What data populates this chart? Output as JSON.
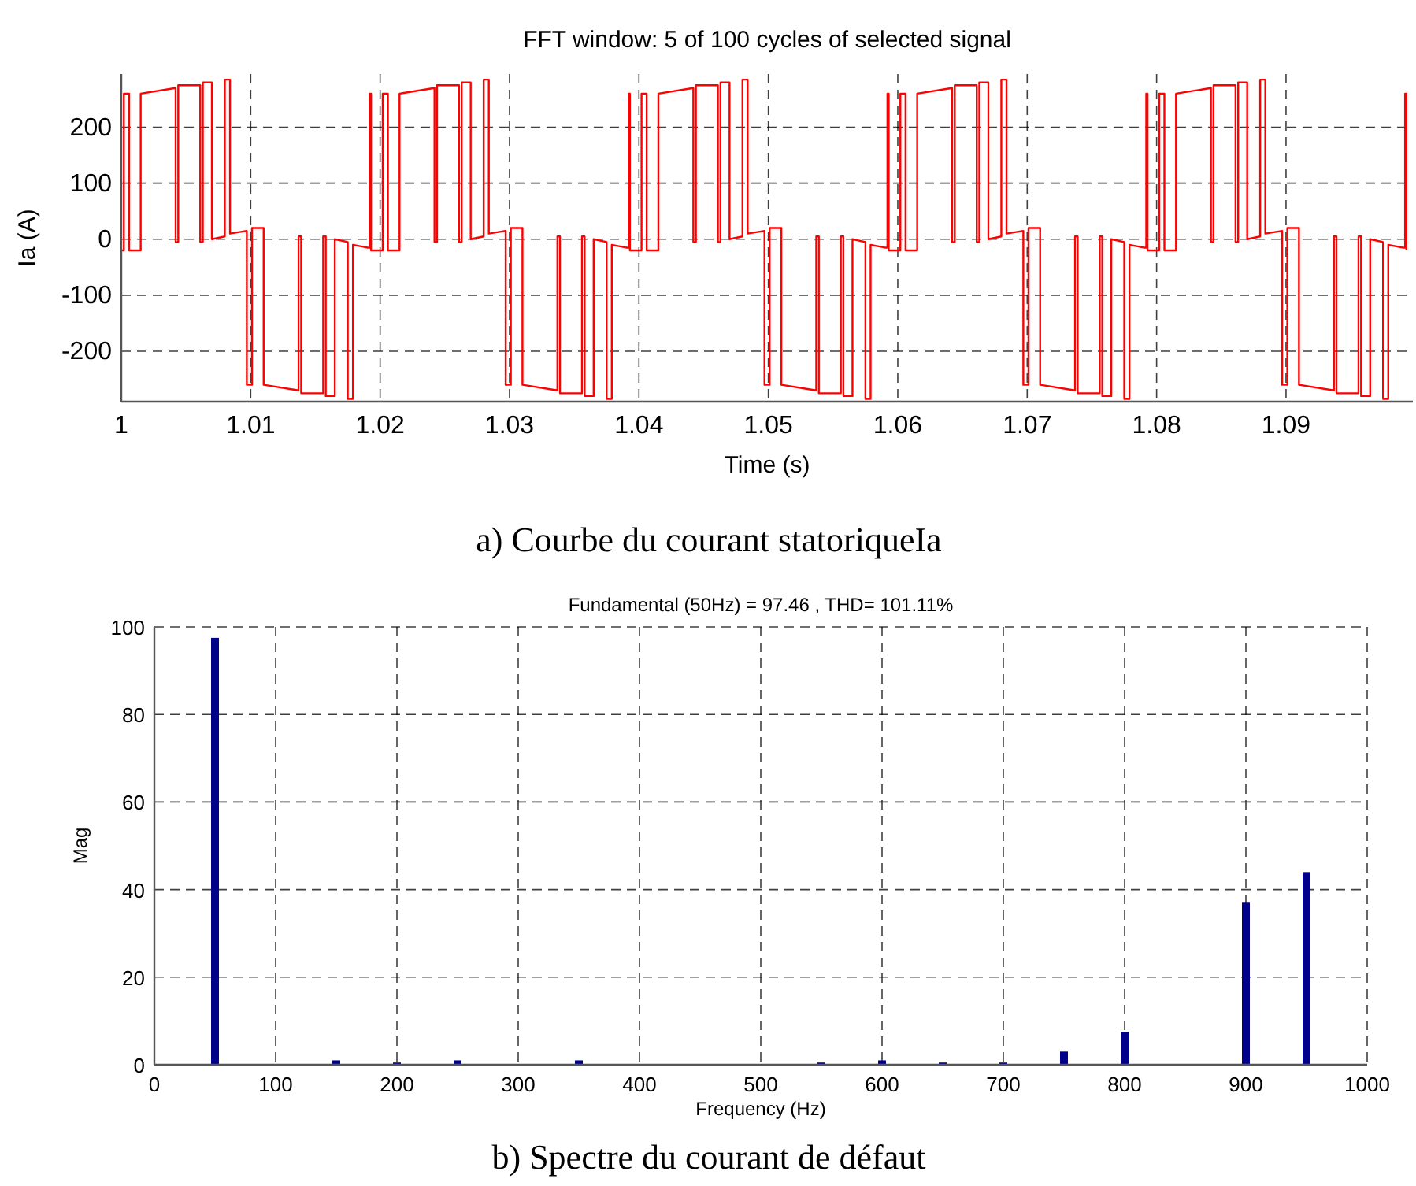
{
  "chart_data": [
    {
      "type": "line",
      "title": "FFT window: 5 of 100 cycles of selected signal",
      "xlabel": "Time (s)",
      "ylabel": "Ia  (A)",
      "annotations": [
        "a) Courbe du courant statoriqueIa"
      ],
      "color": "#ff0000",
      "grid": true,
      "xlim": [
        1,
        1.0998
      ],
      "ylim": [
        -290,
        295
      ],
      "xticks": [
        1,
        1.01,
        1.02,
        1.03,
        1.04,
        1.05,
        1.06,
        1.07,
        1.08,
        1.09
      ],
      "yticks": [
        -200,
        -100,
        0,
        100,
        200
      ],
      "x": [
        1.0,
        1.0002,
        1.0002,
        1.0006,
        1.0006,
        1.0015,
        1.0015,
        1.0042,
        1.0042,
        1.0044,
        1.0044,
        1.0061,
        1.0061,
        1.0063,
        1.0063,
        1.007,
        1.007,
        1.008,
        1.008,
        1.0084,
        1.0084,
        1.0097,
        1.0097,
        1.0101,
        1.0101,
        1.011,
        1.011,
        1.0137,
        1.0137,
        1.0139,
        1.0139,
        1.0156,
        1.0156,
        1.0158,
        1.0158,
        1.0165,
        1.0165,
        1.0175,
        1.0175,
        1.0179,
        1.0179,
        1.019,
        1.0192,
        1.0192,
        1.0193,
        1.0193,
        1.02,
        1.0202,
        1.0202,
        1.0206,
        1.0206,
        1.0215,
        1.0215,
        1.0242,
        1.0242,
        1.0244,
        1.0244,
        1.0261,
        1.0261,
        1.0263,
        1.0263,
        1.027,
        1.027,
        1.028,
        1.028,
        1.0284,
        1.0284,
        1.0297,
        1.0297,
        1.0301,
        1.0301,
        1.031,
        1.031,
        1.0337,
        1.0337,
        1.0339,
        1.0339,
        1.0356,
        1.0356,
        1.0358,
        1.0358,
        1.0365,
        1.0365,
        1.0375,
        1.0375,
        1.0379,
        1.0379,
        1.039,
        1.0392,
        1.0392,
        1.0393,
        1.0393,
        1.04,
        1.0402,
        1.0402,
        1.0406,
        1.0406,
        1.0415,
        1.0415,
        1.0442,
        1.0442,
        1.0444,
        1.0444,
        1.0461,
        1.0461,
        1.0463,
        1.0463,
        1.047,
        1.047,
        1.048,
        1.048,
        1.0484,
        1.0484,
        1.0497,
        1.0497,
        1.0501,
        1.0501,
        1.051,
        1.051,
        1.0537,
        1.0537,
        1.0539,
        1.0539,
        1.0556,
        1.0556,
        1.0558,
        1.0558,
        1.0565,
        1.0565,
        1.0575,
        1.0575,
        1.0579,
        1.0579,
        1.059,
        1.0592,
        1.0592,
        1.0593,
        1.0593,
        1.06,
        1.0602,
        1.0602,
        1.0606,
        1.0606,
        1.0615,
        1.0615,
        1.0642,
        1.0642,
        1.0644,
        1.0644,
        1.0661,
        1.0661,
        1.0663,
        1.0663,
        1.067,
        1.067,
        1.068,
        1.068,
        1.0684,
        1.0684,
        1.0697,
        1.0697,
        1.0701,
        1.0701,
        1.071,
        1.071,
        1.0737,
        1.0737,
        1.0739,
        1.0739,
        1.0756,
        1.0756,
        1.0758,
        1.0758,
        1.0765,
        1.0765,
        1.0775,
        1.0775,
        1.0779,
        1.0779,
        1.079,
        1.0792,
        1.0792,
        1.0793,
        1.0793,
        1.08,
        1.0802,
        1.0802,
        1.0806,
        1.0806,
        1.0815,
        1.0815,
        1.0842,
        1.0842,
        1.0844,
        1.0844,
        1.0861,
        1.0861,
        1.0863,
        1.0863,
        1.087,
        1.087,
        1.088,
        1.088,
        1.0884,
        1.0884,
        1.0897,
        1.0897,
        1.0901,
        1.0901,
        1.091,
        1.091,
        1.0937,
        1.0937,
        1.0939,
        1.0939,
        1.0956,
        1.0956,
        1.0958,
        1.0958,
        1.0965,
        1.0965,
        1.0975,
        1.0975,
        1.0979,
        1.0979,
        1.099,
        1.0992,
        1.0992,
        1.0993,
        1.0993
      ],
      "values": [
        -20,
        -20,
        260,
        260,
        -20,
        -20,
        260,
        270,
        -5,
        -5,
        275,
        275,
        -5,
        -5,
        280,
        280,
        0,
        5,
        285,
        285,
        10,
        15,
        -260,
        -260,
        20,
        20,
        -260,
        -270,
        5,
        5,
        -275,
        -275,
        5,
        5,
        -280,
        -280,
        0,
        -5,
        -285,
        -285,
        -10,
        -15,
        -15,
        260,
        260,
        -20,
        -20,
        -20,
        260,
        260,
        -20,
        -20,
        260,
        270,
        -5,
        -5,
        275,
        275,
        -5,
        -5,
        280,
        280,
        0,
        5,
        285,
        285,
        10,
        15,
        -260,
        -260,
        20,
        20,
        -260,
        -270,
        5,
        5,
        -275,
        -275,
        5,
        5,
        -280,
        -280,
        0,
        -5,
        -285,
        -285,
        -10,
        -15,
        -15,
        260,
        260,
        -20,
        -20,
        -20,
        260,
        260,
        -20,
        -20,
        260,
        270,
        -5,
        -5,
        275,
        275,
        -5,
        -5,
        280,
        280,
        0,
        5,
        285,
        285,
        10,
        15,
        -260,
        -260,
        20,
        20,
        -260,
        -270,
        5,
        5,
        -275,
        -275,
        5,
        5,
        -280,
        -280,
        0,
        -5,
        -285,
        -285,
        -10,
        -15,
        -15,
        260,
        260,
        -20,
        -20,
        -20,
        260,
        260,
        -20,
        -20,
        260,
        270,
        -5,
        -5,
        275,
        275,
        -5,
        -5,
        280,
        280,
        0,
        5,
        285,
        285,
        10,
        15,
        -260,
        -260,
        20,
        20,
        -260,
        -270,
        5,
        5,
        -275,
        -275,
        5,
        5,
        -280,
        -280,
        0,
        -5,
        -285,
        -285,
        -10,
        -15,
        -15,
        260,
        260,
        -20,
        -20,
        -20,
        260,
        260,
        -20,
        -20,
        260,
        270,
        -5,
        -5,
        275,
        275,
        -5,
        -5,
        280,
        280,
        0,
        5,
        285,
        285,
        10,
        15,
        -260,
        -260,
        20,
        20,
        -260,
        -270,
        5,
        5,
        -275,
        -275,
        5,
        5,
        -280,
        -280,
        0,
        -5,
        -285,
        -285,
        -10,
        -15,
        -15,
        260,
        260,
        -20
      ]
    },
    {
      "type": "bar",
      "title": "Fundamental (50Hz) = 97.46 , THD= 101.11%",
      "xlabel": "Frequency (Hz)",
      "ylabel": "Mag",
      "annotations": [
        "b) Spectre du courant de défaut"
      ],
      "color": "#00008b",
      "grid": true,
      "xlim": [
        0,
        1000
      ],
      "ylim": [
        0,
        100
      ],
      "xticks": [
        0,
        100,
        200,
        300,
        400,
        500,
        600,
        700,
        800,
        900,
        1000
      ],
      "yticks": [
        0,
        20,
        40,
        60,
        80,
        100
      ],
      "x": [
        50,
        150,
        200,
        250,
        350,
        550,
        600,
        650,
        700,
        750,
        800,
        900,
        950
      ],
      "values": [
        97.5,
        1,
        0.5,
        1,
        1,
        0.5,
        1,
        0.5,
        0.5,
        3,
        7.5,
        37,
        44
      ]
    }
  ]
}
